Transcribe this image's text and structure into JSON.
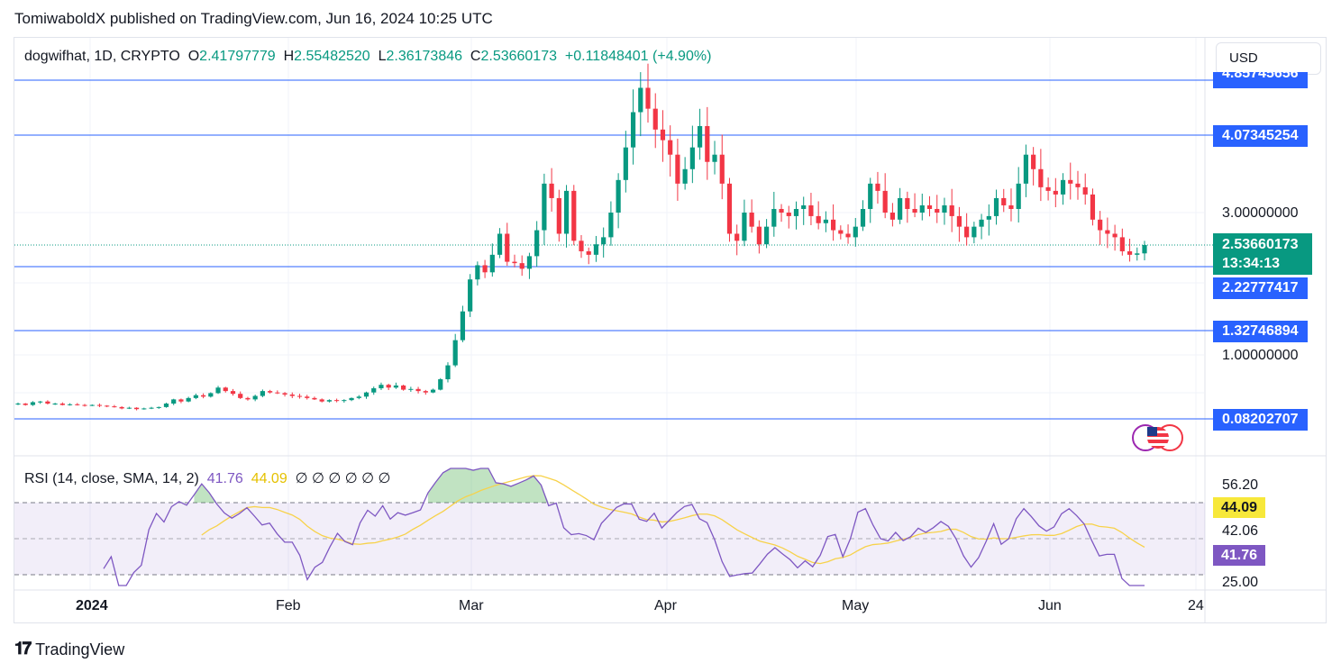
{
  "header": {
    "published": "TomiwaboldX published on TradingView.com, Jun 16, 2024 10:25 UTC"
  },
  "legend": {
    "symbol": "dogwifhat, 1D, CRYPTO",
    "o_label": "O",
    "o": "2.41797779",
    "h_label": "H",
    "h": "2.55482520",
    "l_label": "L",
    "l": "2.36173846",
    "c_label": "C",
    "c": "2.53660173",
    "change": "+0.11848401 (+4.90%)"
  },
  "currency": "USD",
  "levels": [
    "4.07345254",
    "2.22777417",
    "1.32746894",
    "0.08202707"
  ],
  "top_level_partial": "4.85745656",
  "price_axis": {
    "tick_3": "3.00000000",
    "tick_1": "1.00000000"
  },
  "current": {
    "price": "2.53660173",
    "countdown": "13:34:13"
  },
  "rsi": {
    "title": "RSI (14, close, SMA, 14, 2)",
    "value": "41.76",
    "sma_value": "44.09",
    "extra": "∅ ∅ ∅ ∅ ∅ ∅",
    "axis_top": "56.20",
    "axis_mid": "42.06",
    "axis_bottom": "25.00"
  },
  "colors": {
    "up": "#089981",
    "down": "#f23645",
    "level": "#2962ff",
    "rsi": "#7e57c2",
    "sma": "#f7d24a"
  },
  "x_axis": [
    "2024",
    "Feb",
    "Mar",
    "Apr",
    "May",
    "Jun",
    "24"
  ],
  "brand": "TradingView",
  "chart_data": {
    "type": "candlestick",
    "title": "dogwifhat, 1D, CRYPTO",
    "ylabel": "USD",
    "levels": [
      4.85745656,
      4.07345254,
      2.22777417,
      1.32746894,
      0.08202707
    ],
    "current_price": 2.53660173,
    "closes": [
      0.3,
      0.28,
      0.32,
      0.33,
      0.3,
      0.3,
      0.28,
      0.29,
      0.28,
      0.27,
      0.28,
      0.27,
      0.26,
      0.25,
      0.23,
      0.24,
      0.22,
      0.23,
      0.24,
      0.25,
      0.3,
      0.36,
      0.33,
      0.38,
      0.42,
      0.4,
      0.45,
      0.53,
      0.48,
      0.44,
      0.38,
      0.36,
      0.41,
      0.48,
      0.46,
      0.45,
      0.43,
      0.41,
      0.4,
      0.38,
      0.36,
      0.33,
      0.35,
      0.34,
      0.35,
      0.38,
      0.4,
      0.46,
      0.52,
      0.57,
      0.53,
      0.56,
      0.5,
      0.51,
      0.48,
      0.46,
      0.5,
      0.65,
      0.85,
      1.2,
      1.6,
      2.05,
      2.25,
      2.15,
      2.4,
      2.7,
      2.3,
      2.28,
      2.2,
      2.38,
      2.75,
      3.4,
      3.2,
      2.7,
      3.3,
      2.6,
      2.45,
      2.4,
      2.55,
      2.65,
      3.0,
      3.45,
      3.9,
      4.4,
      4.75,
      4.45,
      4.15,
      4.0,
      3.8,
      3.4,
      3.6,
      3.9,
      4.2,
      3.7,
      3.8,
      3.4,
      2.7,
      2.6,
      3.0,
      2.8,
      2.55,
      2.8,
      3.05,
      3.0,
      2.95,
      3.05,
      3.1,
      2.95,
      2.85,
      2.9,
      2.75,
      2.7,
      2.65,
      2.8,
      3.05,
      3.4,
      3.3,
      3.0,
      2.9,
      3.2,
      3.05,
      3.0,
      3.1,
      3.05,
      3.0,
      3.1,
      2.95,
      2.8,
      2.65,
      2.8,
      2.9,
      2.95,
      3.2,
      3.1,
      3.05,
      3.4,
      3.8,
      3.6,
      3.35,
      3.3,
      3.25,
      3.45,
      3.4,
      3.35,
      3.25,
      2.9,
      2.75,
      2.7,
      2.65,
      2.45,
      2.4,
      2.42,
      2.54
    ],
    "rsi": {
      "bands": [
        30,
        50,
        70
      ],
      "value": 41.76,
      "sma": 44.09
    }
  }
}
